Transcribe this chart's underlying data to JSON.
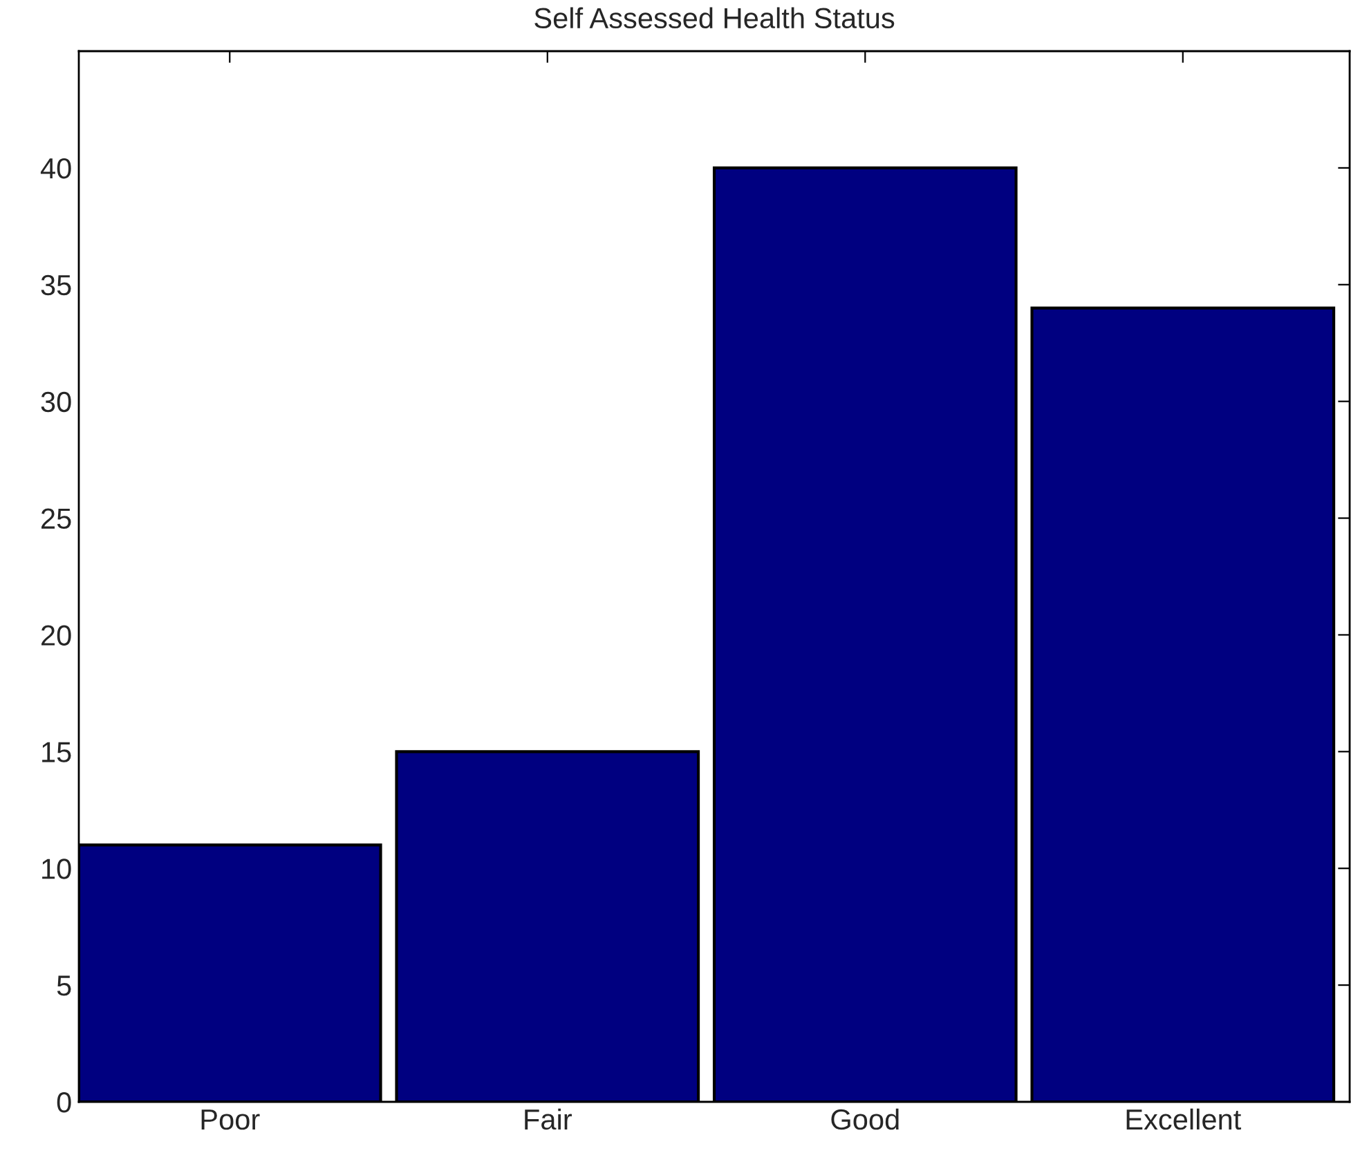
{
  "chart_data": {
    "type": "bar",
    "title": "Self Assessed Health Status",
    "categories": [
      "Poor",
      "Fair",
      "Good",
      "Excellent"
    ],
    "values": [
      11,
      15,
      40,
      34
    ],
    "color": "#000080",
    "ylim": [
      0,
      45
    ],
    "yticks": [
      0,
      5,
      10,
      15,
      20,
      25,
      30,
      35,
      40
    ],
    "grid": false
  }
}
